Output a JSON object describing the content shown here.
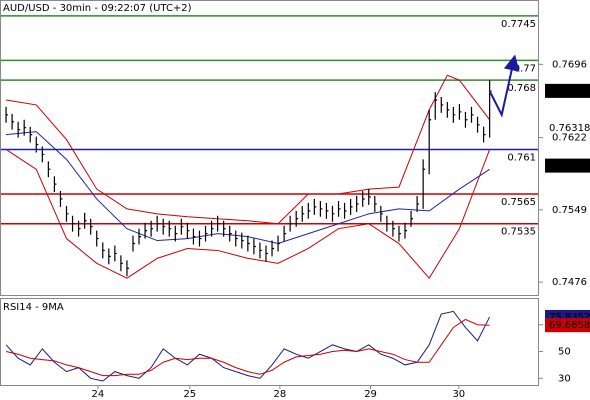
{
  "chart_data": {
    "type": "ohlc",
    "title": "AUD/USD - 30min - 09:22:07 (UTC+2)",
    "xlim": [
      -1,
      88
    ],
    "xticks": [
      {
        "value": 15.2,
        "label": "24"
      },
      {
        "value": 30.4,
        "label": "25"
      },
      {
        "value": 45.3,
        "label": "28"
      },
      {
        "value": 60.3,
        "label": "29"
      },
      {
        "value": 74.9,
        "label": "30"
      }
    ],
    "ylim": [
      0.7463,
      0.7761
    ],
    "yticks": [
      0.7476,
      0.7549,
      0.7622,
      0.7696
    ],
    "bar_color": "#000000",
    "close": [
      0.7645,
      0.7638,
      0.763,
      0.7632,
      0.7625,
      0.7615,
      0.7605,
      0.759,
      0.7575,
      0.756,
      0.7545,
      0.7535,
      0.753,
      0.7538,
      0.7532,
      0.752,
      0.7508,
      0.7502,
      0.7505,
      0.7495,
      0.749,
      0.7515,
      0.7522,
      0.7528,
      0.753,
      0.7535,
      0.7532,
      0.753,
      0.7525,
      0.7532,
      0.7528,
      0.7522,
      0.752,
      0.7525,
      0.753,
      0.7535,
      0.753,
      0.7525,
      0.752,
      0.7518,
      0.7515,
      0.7512,
      0.7508,
      0.7505,
      0.751,
      0.7515,
      0.7525,
      0.7535,
      0.754,
      0.7545,
      0.7548,
      0.7552,
      0.755,
      0.7548,
      0.7545,
      0.755,
      0.7548,
      0.7552,
      0.7555,
      0.756,
      0.7562,
      0.7555,
      0.7545,
      0.7535,
      0.753,
      0.7525,
      0.7528,
      0.754,
      0.7555,
      0.759,
      0.764,
      0.766,
      0.7655,
      0.765,
      0.7645,
      0.7648,
      0.764,
      0.7645,
      0.7635,
      0.7625,
      0.7669
    ],
    "high": [
      0.7653,
      0.7646,
      0.7638,
      0.764,
      0.7633,
      0.7623,
      0.7613,
      0.7598,
      0.7583,
      0.7568,
      0.7553,
      0.7543,
      0.7538,
      0.7546,
      0.754,
      0.7528,
      0.7516,
      0.751,
      0.7513,
      0.7503,
      0.7498,
      0.7523,
      0.753,
      0.7536,
      0.7538,
      0.7543,
      0.754,
      0.7538,
      0.7533,
      0.754,
      0.7536,
      0.753,
      0.7528,
      0.7533,
      0.7538,
      0.7543,
      0.7538,
      0.7533,
      0.7528,
      0.7526,
      0.7523,
      0.752,
      0.7516,
      0.7513,
      0.7518,
      0.7523,
      0.7533,
      0.7543,
      0.7548,
      0.7553,
      0.7556,
      0.756,
      0.7558,
      0.7556,
      0.7553,
      0.7558,
      0.7556,
      0.756,
      0.7563,
      0.7568,
      0.757,
      0.7563,
      0.7553,
      0.7543,
      0.7538,
      0.7533,
      0.7536,
      0.7548,
      0.7563,
      0.76,
      0.765,
      0.7668,
      0.7663,
      0.7658,
      0.7653,
      0.7656,
      0.7648,
      0.7653,
      0.7643,
      0.7633,
      0.768
    ],
    "low": [
      0.7637,
      0.763,
      0.7622,
      0.7624,
      0.7617,
      0.7607,
      0.7597,
      0.7582,
      0.7567,
      0.7552,
      0.7537,
      0.7527,
      0.7522,
      0.753,
      0.7524,
      0.7512,
      0.75,
      0.7494,
      0.7497,
      0.7487,
      0.7482,
      0.7507,
      0.7514,
      0.752,
      0.7522,
      0.7527,
      0.7524,
      0.7522,
      0.7517,
      0.7524,
      0.752,
      0.7514,
      0.7512,
      0.7517,
      0.7522,
      0.7527,
      0.7522,
      0.7517,
      0.7512,
      0.751,
      0.7507,
      0.7504,
      0.75,
      0.7497,
      0.7502,
      0.7507,
      0.7517,
      0.7527,
      0.7532,
      0.7537,
      0.754,
      0.7544,
      0.7542,
      0.754,
      0.7537,
      0.7542,
      0.754,
      0.7544,
      0.7547,
      0.7552,
      0.7554,
      0.7547,
      0.7537,
      0.7527,
      0.7522,
      0.7517,
      0.752,
      0.7532,
      0.7547,
      0.755,
      0.7585,
      0.764,
      0.7647,
      0.7642,
      0.7637,
      0.764,
      0.7632,
      0.7637,
      0.7627,
      0.7617,
      0.7622
    ],
    "lines": [
      {
        "color": "#cc0000",
        "x": [
          0,
          5,
          10,
          15,
          20,
          25,
          30,
          35,
          40,
          45,
          50,
          55,
          60,
          65,
          70,
          73,
          75,
          80
        ],
        "values": [
          0.766,
          0.7655,
          0.762,
          0.757,
          0.755,
          0.7545,
          0.7542,
          0.754,
          0.7538,
          0.7535,
          0.7565,
          0.7565,
          0.757,
          0.7572,
          0.765,
          0.7685,
          0.768,
          0.764
        ]
      },
      {
        "color": "#cc0000",
        "x": [
          0,
          5,
          10,
          15,
          20,
          25,
          30,
          35,
          40,
          45,
          50,
          55,
          60,
          65,
          70,
          75,
          80
        ],
        "values": [
          0.761,
          0.759,
          0.752,
          0.7495,
          0.748,
          0.75,
          0.751,
          0.7508,
          0.75,
          0.7495,
          0.751,
          0.753,
          0.7535,
          0.7515,
          0.748,
          0.753,
          0.761
        ]
      },
      {
        "color": "#2222aa",
        "x": [
          0,
          5,
          10,
          15,
          20,
          25,
          30,
          35,
          40,
          45,
          50,
          55,
          60,
          65,
          70,
          75,
          80
        ],
        "values": [
          0.7625,
          0.7628,
          0.76,
          0.756,
          0.753,
          0.7518,
          0.752,
          0.7525,
          0.7522,
          0.7515,
          0.7525,
          0.7535,
          0.7545,
          0.755,
          0.7548,
          0.757,
          0.759
        ]
      }
    ],
    "projection": {
      "color": "#1a1aa0",
      "x": [
        80,
        82,
        84
      ],
      "values": [
        0.7669,
        0.7645,
        0.77
      ]
    },
    "levels": [
      {
        "value": 0.7745,
        "color": "#2e8b2e"
      },
      {
        "value": 0.77,
        "color": "#2e8b2e"
      },
      {
        "value": 0.768,
        "color": "#2e8b2e"
      },
      {
        "value": 0.761,
        "color": "#1a1acc"
      },
      {
        "value": 0.7565,
        "color": "#cc0000"
      },
      {
        "value": 0.7535,
        "color": "#cc0000"
      }
    ],
    "markers": [
      {
        "value": 0.76692,
        "color": "#000000",
        "boxed": true
      },
      {
        "value": 0.76318,
        "color": "#cc0000",
        "boxed": false
      },
      {
        "value": 0.75937,
        "color": "#000000",
        "boxed": true
      }
    ],
    "rsi": {
      "title": "RSI14 - 9MA",
      "ylim": [
        25,
        90
      ],
      "yticks": [
        30,
        50,
        70
      ],
      "series": [
        {
          "color": "#1a1a80",
          "values": [
            55,
            45,
            40,
            52,
            42,
            35,
            38,
            30,
            28,
            35,
            32,
            30,
            38,
            52,
            45,
            40,
            48,
            45,
            38,
            35,
            32,
            30,
            40,
            52,
            48,
            45,
            50,
            55,
            52,
            50,
            55,
            48,
            45,
            40,
            42,
            55,
            78,
            80,
            68,
            58,
            75.8352
          ]
        },
        {
          "color": "#cc0000",
          "values": [
            50,
            48,
            45,
            44,
            43,
            40,
            38,
            35,
            32,
            32,
            33,
            33,
            36,
            42,
            45,
            44,
            45,
            45,
            42,
            38,
            35,
            33,
            36,
            42,
            46,
            47,
            48,
            50,
            51,
            50,
            52,
            50,
            48,
            44,
            42,
            42,
            55,
            68,
            74,
            70,
            69.6858
          ]
        }
      ],
      "x_step": 2
    }
  }
}
